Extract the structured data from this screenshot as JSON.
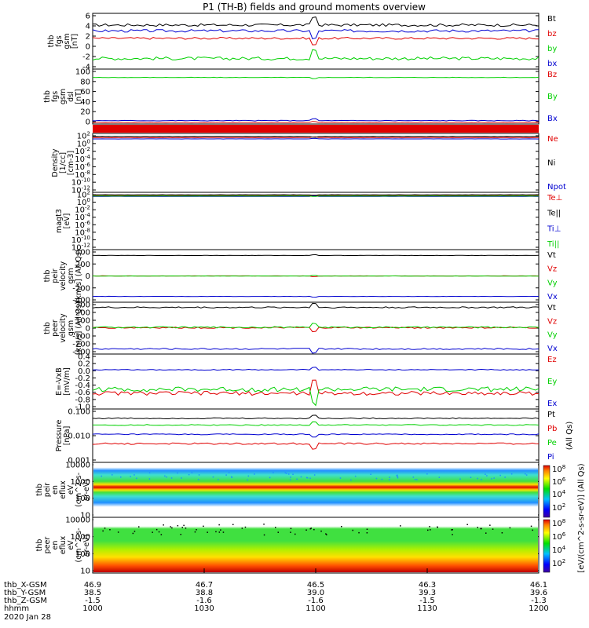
{
  "title": "P1 (TH-B) fields and ground moments overview",
  "colors": {
    "black": "#000000",
    "red": "#e00000",
    "green": "#00d000",
    "blue": "#0000d0"
  },
  "chart_data": [
    {
      "type": "line",
      "panel_index": 0,
      "ylabel": [
        "thb",
        "fgs",
        "gsm",
        "[nT]"
      ],
      "yticks": [
        "6",
        "4",
        "2",
        "0",
        "-2",
        "-4"
      ],
      "ylim": [
        -4,
        6.5
      ],
      "legend": [
        "Bt",
        "bz",
        "by",
        "bx"
      ],
      "series": [
        {
          "name": "Bt",
          "color": "black",
          "level": 4.3,
          "noise": 0.25
        },
        {
          "name": "bz",
          "color": "red",
          "level": 1.8,
          "noise": 0.2
        },
        {
          "name": "by",
          "color": "green",
          "level": -2.0,
          "noise": 0.3
        },
        {
          "name": "bx",
          "color": "blue",
          "level": 3.2,
          "noise": 0.25
        }
      ]
    },
    {
      "type": "line",
      "panel_index": 1,
      "ylabel": [
        "thb",
        "fgs",
        "gsm",
        "dsl",
        "[nT]"
      ],
      "yticks": [
        "100",
        "80",
        "60",
        "40",
        "20",
        "0"
      ],
      "ylim": [
        -5,
        100
      ],
      "legend": [
        "Bz",
        "By",
        "Bx"
      ],
      "series": [
        {
          "name": "Bz",
          "color": "red",
          "level": -2,
          "noise": 0.3
        },
        {
          "name": "By",
          "color": "green",
          "level": 84,
          "noise": 0.4
        },
        {
          "name": "Bx",
          "color": "blue",
          "level": 1.5,
          "noise": 0.6
        }
      ]
    },
    {
      "type": "line",
      "panel_index": 3,
      "log": true,
      "ylabel": [
        "Density",
        "[1/cc]",
        "[cm-3]"
      ],
      "yticks": [
        "10^2",
        "10^0",
        "10^-2",
        "10^-4",
        "10^-6",
        "10^-8",
        "10^-10",
        "10^-12"
      ],
      "ylim": [
        -12,
        2
      ],
      "legend": [
        "Ne",
        "Ni",
        "Npot"
      ],
      "series": [
        {
          "name": "Ne",
          "color": "red",
          "level": 1.0,
          "noise": 0.03
        },
        {
          "name": "Ni",
          "color": "black",
          "level": 1.3,
          "noise": 0.03
        },
        {
          "name": "Npot",
          "color": "blue",
          "level": 0.7,
          "noise": 0.02
        }
      ]
    },
    {
      "type": "line",
      "panel_index": 4,
      "log": true,
      "ylabel": [
        "magt3",
        "[eV]"
      ],
      "yticks": [
        "10^2",
        "10^0",
        "10^-2",
        "10^-4",
        "10^-6",
        "10^-8",
        "10^-10",
        "10^-12"
      ],
      "ylim": [
        -12,
        2
      ],
      "legend": [
        "Te⊥",
        "Te||",
        "Ti⊥",
        "Ti||"
      ],
      "series": [
        {
          "name": "Te⊥",
          "color": "red",
          "level": 1.2,
          "noise": 0.02
        },
        {
          "name": "Te||",
          "color": "black",
          "level": 1.4,
          "noise": 0.02
        },
        {
          "name": "Ti⊥",
          "color": "blue",
          "level": 1.0,
          "noise": 0.02
        },
        {
          "name": "Ti||",
          "color": "green",
          "level": 1.1,
          "noise": 0.02
        }
      ]
    },
    {
      "type": "line",
      "panel_index": 5,
      "ylabel": [
        "thb",
        "peir",
        "velocity",
        "gsm",
        "[km/s] (All Qs)"
      ],
      "yticks": [
        "400",
        "200",
        "0",
        "-200",
        "-400"
      ],
      "ylim": [
        -430,
        430
      ],
      "legend": [
        "Vt",
        "Vz",
        "Vy",
        "Vx"
      ],
      "series": [
        {
          "name": "Vt",
          "color": "black",
          "level": 335,
          "noise": 2
        },
        {
          "name": "Vz",
          "color": "red",
          "level": 0,
          "noise": 2
        },
        {
          "name": "Vy",
          "color": "green",
          "level": -2,
          "noise": 2
        },
        {
          "name": "Vx",
          "color": "blue",
          "level": -335,
          "noise": 2
        }
      ]
    },
    {
      "type": "line",
      "panel_index": 6,
      "ylabel": [
        "thb",
        "peer",
        "velocity",
        "gsm",
        "[km/s] (All Qs)"
      ],
      "yticks": [
        "300",
        "200",
        "100",
        "0",
        "-100",
        "-200",
        "-300"
      ],
      "ylim": [
        -300,
        300
      ],
      "legend": [
        "Vt",
        "Vz",
        "Vy",
        "Vx"
      ],
      "series": [
        {
          "name": "Vt",
          "color": "black",
          "level": 240,
          "noise": 8
        },
        {
          "name": "Vz",
          "color": "red",
          "level": 5,
          "noise": 8
        },
        {
          "name": "Vy",
          "color": "green",
          "level": 10,
          "noise": 8
        },
        {
          "name": "Vx",
          "color": "blue",
          "level": -240,
          "noise": 8
        }
      ]
    },
    {
      "type": "line",
      "panel_index": 7,
      "ylabel": [
        "E=-VxB",
        "[mV/m]"
      ],
      "yticks": [
        "0.4",
        "0.2",
        "0.0",
        "-0.2",
        "-0.4",
        "-0.6",
        "-0.8",
        "-1.0"
      ],
      "ylim": [
        -1.0,
        0.4
      ],
      "legend": [
        "Ez",
        "Ey",
        "Ex"
      ],
      "series": [
        {
          "name": "Ez",
          "color": "red",
          "level": -0.6,
          "noise": 0.05
        },
        {
          "name": "Ey",
          "color": "green",
          "level": -0.5,
          "noise": 0.06
        },
        {
          "name": "Ex",
          "color": "blue",
          "level": 0.0,
          "noise": 0.01
        }
      ]
    },
    {
      "type": "line",
      "panel_index": 8,
      "log": true,
      "ylabel": [
        "Pressure",
        "[nPa]"
      ],
      "yticks": [
        "0.100",
        "0.010",
        "0.001"
      ],
      "ylim": [
        -3,
        -1
      ],
      "legend": [
        "Pt",
        "Pb",
        "Pe",
        "Pi"
      ],
      "legend_note": "(All Qs)",
      "series": [
        {
          "name": "Pt",
          "color": "black",
          "level": -1.35,
          "noise": 0.02
        },
        {
          "name": "Pb",
          "color": "red",
          "level": -2.3,
          "noise": 0.03
        },
        {
          "name": "Pe",
          "color": "green",
          "level": -1.6,
          "noise": 0.02
        },
        {
          "name": "Pi",
          "color": "blue",
          "level": -1.95,
          "noise": 0.02
        }
      ]
    },
    {
      "type": "heatmap",
      "panel_index": 9,
      "ylabel": [
        "thb",
        "peir",
        "en",
        "eflux",
        "eV",
        "(cm^2-s-",
        "sr-eV)"
      ],
      "yticks": [
        "10000",
        "1000",
        "100",
        "10"
      ]
    },
    {
      "type": "heatmap",
      "panel_index": 10,
      "ylabel": [
        "thb",
        "peer",
        "en",
        "eflux",
        "eV",
        "(cm^2-s-",
        "sr-eV)"
      ],
      "yticks": [
        "10000",
        "1000",
        "100",
        "10"
      ]
    }
  ],
  "colorbar": {
    "ticks": [
      "10^8",
      "10^6",
      "10^4",
      "10^2",
      "10^8",
      "10^6",
      "10^4",
      "10^2"
    ],
    "label": "[eV/(cm^2-s-sr-eV)] (All Qs)"
  },
  "xaxis": {
    "rows": [
      {
        "label": "thb_X-GSM",
        "values": [
          "46.9",
          "46.7",
          "46.5",
          "46.3",
          "46.1"
        ]
      },
      {
        "label": "thb_Y-GSM",
        "values": [
          "38.5",
          "38.8",
          "39.0",
          "39.3",
          "39.6"
        ]
      },
      {
        "label": "thb_Z-GSM",
        "values": [
          "-1.5",
          "-1.6",
          "-1.6",
          "-1.5",
          "-1.3"
        ]
      },
      {
        "label": "hhmm",
        "values": [
          "1000",
          "1030",
          "1100",
          "1130",
          "1200"
        ]
      }
    ],
    "date": "2020 Jan 28"
  }
}
